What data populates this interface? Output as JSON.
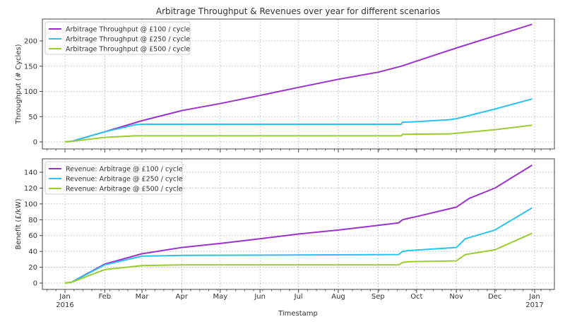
{
  "chart_data": [
    {
      "type": "line",
      "title": "Arbitrage Throughput & Revenues over year for different scenarios",
      "xlabel": "",
      "ylabel": "Throughput (# Cycles)",
      "x_unit": "days since 2016-01-01",
      "ylim": [
        -10,
        245
      ],
      "yticks": [
        0,
        50,
        100,
        150,
        200
      ],
      "grid": true,
      "legend_position": "top-left",
      "series": [
        {
          "name": "Arbitrage Throughput @ £100 / cycle",
          "color": "#9b32cc",
          "points": [
            [
              0,
              0
            ],
            [
              5,
              1
            ],
            [
              31,
              20
            ],
            [
              60,
              42
            ],
            [
              91,
              62
            ],
            [
              121,
              76
            ],
            [
              152,
              92
            ],
            [
              182,
              108
            ],
            [
              213,
              124
            ],
            [
              244,
              138
            ],
            [
              262,
              150
            ],
            [
              274,
              160
            ],
            [
              305,
              186
            ],
            [
              335,
              210
            ],
            [
              364,
              233
            ]
          ]
        },
        {
          "name": "Arbitrage Throughput @ £250 / cycle",
          "color": "#29c4ee",
          "points": [
            [
              0,
              0
            ],
            [
              5,
              1
            ],
            [
              31,
              20
            ],
            [
              55,
              34
            ],
            [
              60,
              35
            ],
            [
              262,
              35
            ],
            [
              263,
              39
            ],
            [
              274,
              40
            ],
            [
              300,
              44
            ],
            [
              305,
              46
            ],
            [
              335,
              65
            ],
            [
              364,
              85
            ]
          ]
        },
        {
          "name": "Arbitrage Throughput @ £500 / cycle",
          "color": "#9acd32",
          "points": [
            [
              0,
              0
            ],
            [
              5,
              1
            ],
            [
              31,
              9
            ],
            [
              55,
              12
            ],
            [
              262,
              12
            ],
            [
              263,
              15
            ],
            [
              300,
              16
            ],
            [
              335,
              24
            ],
            [
              364,
              33
            ]
          ]
        }
      ]
    },
    {
      "type": "line",
      "title": "",
      "xlabel": "Timestamp",
      "ylabel": "Benefit (£/kW)",
      "x_unit": "days since 2016-01-01",
      "ylim": [
        -8,
        155
      ],
      "yticks": [
        0,
        20,
        40,
        60,
        80,
        100,
        120,
        140
      ],
      "grid": true,
      "legend_position": "top-left",
      "xticks": [
        {
          "day": 0,
          "label": "Jan",
          "sub": "2016"
        },
        {
          "day": 31,
          "label": "Feb"
        },
        {
          "day": 60,
          "label": "Mar"
        },
        {
          "day": 91,
          "label": "Apr"
        },
        {
          "day": 121,
          "label": "May"
        },
        {
          "day": 152,
          "label": "Jun"
        },
        {
          "day": 182,
          "label": "Jul"
        },
        {
          "day": 213,
          "label": "Aug"
        },
        {
          "day": 244,
          "label": "Sep"
        },
        {
          "day": 274,
          "label": "Oct"
        },
        {
          "day": 305,
          "label": "Nov"
        },
        {
          "day": 335,
          "label": "Dec"
        },
        {
          "day": 366,
          "label": "Jan",
          "sub": "2017"
        }
      ],
      "series": [
        {
          "name": "Revenue: Arbitrage @ £100 / cycle",
          "color": "#9b32cc",
          "points": [
            [
              0,
              0
            ],
            [
              5,
              1
            ],
            [
              31,
              24
            ],
            [
              60,
              37
            ],
            [
              91,
              45
            ],
            [
              121,
              50
            ],
            [
              152,
              56
            ],
            [
              182,
              62
            ],
            [
              213,
              67
            ],
            [
              244,
              73
            ],
            [
              260,
              76
            ],
            [
              263,
              80
            ],
            [
              268,
              82
            ],
            [
              274,
              84
            ],
            [
              305,
              96
            ],
            [
              315,
              107
            ],
            [
              335,
              120
            ],
            [
              364,
              149
            ]
          ]
        },
        {
          "name": "Revenue: Arbitrage @ £250 / cycle",
          "color": "#29c4ee",
          "points": [
            [
              0,
              0
            ],
            [
              5,
              1
            ],
            [
              31,
              23
            ],
            [
              60,
              34
            ],
            [
              91,
              35
            ],
            [
              260,
              36
            ],
            [
              263,
              40
            ],
            [
              268,
              41
            ],
            [
              305,
              45
            ],
            [
              312,
              56
            ],
            [
              335,
              67
            ],
            [
              364,
              95
            ]
          ]
        },
        {
          "name": "Revenue: Arbitrage @ £500 / cycle",
          "color": "#9acd32",
          "points": [
            [
              0,
              0
            ],
            [
              5,
              1
            ],
            [
              31,
              17
            ],
            [
              60,
              22
            ],
            [
              91,
              23
            ],
            [
              260,
              23
            ],
            [
              263,
              26
            ],
            [
              268,
              27
            ],
            [
              305,
              28
            ],
            [
              312,
              36
            ],
            [
              335,
              42
            ],
            [
              364,
              63
            ]
          ]
        }
      ]
    }
  ]
}
